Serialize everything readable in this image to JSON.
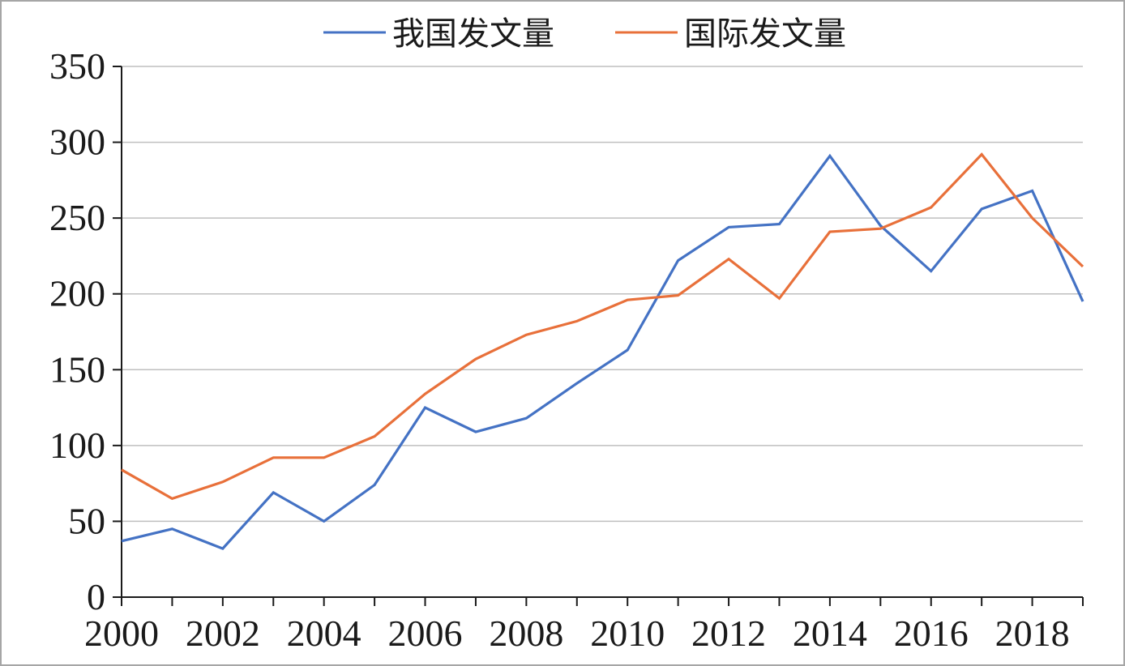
{
  "chart_data": {
    "type": "line",
    "title": "",
    "xlabel": "",
    "ylabel": "",
    "x": [
      2000,
      2001,
      2002,
      2003,
      2004,
      2005,
      2006,
      2007,
      2008,
      2009,
      2010,
      2011,
      2012,
      2013,
      2014,
      2015,
      2016,
      2017,
      2018,
      2019
    ],
    "x_tick_labels": [
      "2000",
      "2002",
      "2004",
      "2006",
      "2008",
      "2010",
      "2012",
      "2014",
      "2016",
      "2018"
    ],
    "y_tick_labels": [
      "0",
      "50",
      "100",
      "150",
      "200",
      "250",
      "300",
      "350"
    ],
    "ylim": [
      0,
      350
    ],
    "grid": "horizontal",
    "legend_position": "top-center",
    "series": [
      {
        "name": "我国发文量",
        "color": "#4472c4",
        "values": [
          37,
          45,
          32,
          69,
          50,
          74,
          125,
          109,
          118,
          141,
          163,
          222,
          244,
          246,
          291,
          245,
          215,
          256,
          268,
          195
        ]
      },
      {
        "name": "国际发文量",
        "color": "#e8703a",
        "values": [
          84,
          65,
          76,
          92,
          92,
          106,
          134,
          157,
          173,
          182,
          196,
          199,
          223,
          197,
          241,
          243,
          257,
          292,
          250,
          218
        ]
      }
    ]
  }
}
